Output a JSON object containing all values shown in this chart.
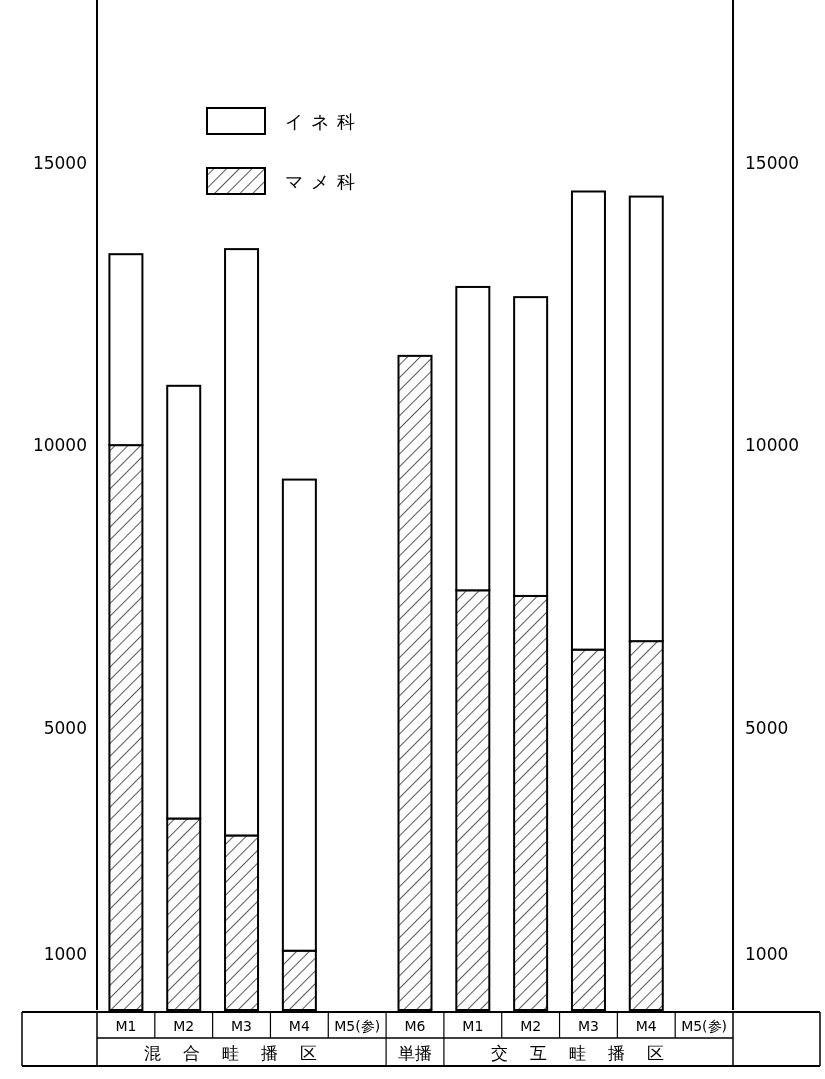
{
  "chart_data": {
    "type": "bar",
    "stacked": true,
    "categories": [
      "M1",
      "M2",
      "M3",
      "M4",
      "M5(参)",
      "M6",
      "M1",
      "M2",
      "M3",
      "M4",
      "M5(参)"
    ],
    "series": [
      {
        "name": "マメ科",
        "color": "#000000",
        "values": [
          10000,
          3390,
          3090,
          1050,
          null,
          11580,
          7430,
          7330,
          6380,
          6530,
          null
        ]
      },
      {
        "name": "イネ科",
        "color": "#ffffff",
        "values": [
          3380,
          7660,
          10380,
          8340,
          null,
          null,
          5370,
          5290,
          8110,
          7870,
          null
        ]
      }
    ],
    "annotations": [
      "混合畦播区",
      "単播",
      "交互畦播区"
    ],
    "ylim": [
      0,
      17880
    ],
    "yticks": [
      1000,
      5000,
      10000,
      15000
    ],
    "y2lim": [
      0,
      17880
    ],
    "y2ticks": [
      1000,
      5000,
      10000,
      15000
    ],
    "legend": "top left",
    "grid": false
  }
}
